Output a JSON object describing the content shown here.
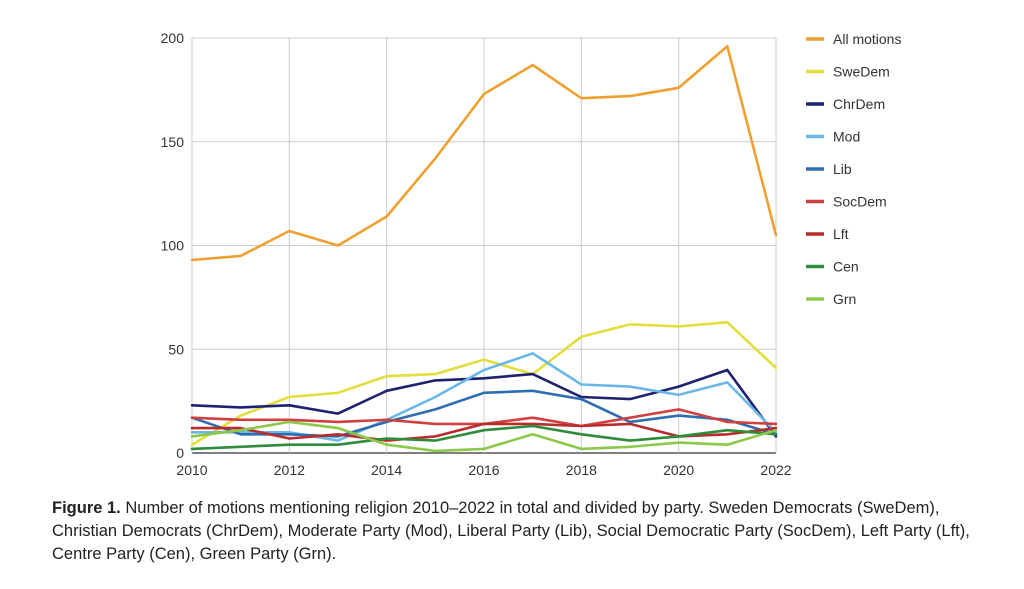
{
  "chart_data": {
    "type": "line",
    "x": [
      2010,
      2011,
      2012,
      2013,
      2014,
      2015,
      2016,
      2017,
      2018,
      2019,
      2020,
      2021,
      2022
    ],
    "xticks": [
      2010,
      2012,
      2014,
      2016,
      2018,
      2020,
      2022
    ],
    "yticks": [
      0,
      50,
      100,
      150,
      200
    ],
    "ylim": [
      0,
      200
    ],
    "xlim": [
      2010,
      2022
    ],
    "grid": true,
    "legend_position": "right",
    "series": [
      {
        "name": "All motions",
        "color": "#f0a030",
        "values": [
          93,
          95,
          107,
          100,
          114,
          142,
          173,
          187,
          171,
          172,
          176,
          196,
          105
        ]
      },
      {
        "name": "SweDem",
        "color": "#e4de3c",
        "values": [
          4,
          18,
          27,
          29,
          37,
          38,
          45,
          38,
          56,
          62,
          61,
          63,
          41
        ]
      },
      {
        "name": "ChrDem",
        "color": "#1c2270",
        "values": [
          23,
          22,
          23,
          19,
          30,
          35,
          36,
          38,
          27,
          26,
          32,
          40,
          8
        ]
      },
      {
        "name": "Mod",
        "color": "#6ab8e8",
        "values": [
          10,
          10,
          10,
          6,
          16,
          27,
          40,
          48,
          33,
          32,
          28,
          34,
          10
        ]
      },
      {
        "name": "Lib",
        "color": "#2e6db0",
        "values": [
          17,
          9,
          9,
          8,
          15,
          21,
          29,
          30,
          26,
          15,
          18,
          16,
          9
        ]
      },
      {
        "name": "SocDem",
        "color": "#d23f3f",
        "values": [
          17,
          16,
          16,
          15,
          16,
          14,
          14,
          17,
          13,
          17,
          21,
          15,
          14
        ]
      },
      {
        "name": "Lft",
        "color": "#b82c2c",
        "values": [
          12,
          12,
          7,
          9,
          6,
          8,
          14,
          14,
          13,
          14,
          8,
          9,
          12
        ]
      },
      {
        "name": "Cen",
        "color": "#2e8c3a",
        "values": [
          2,
          3,
          4,
          4,
          7,
          6,
          11,
          13,
          9,
          6,
          8,
          11,
          9
        ]
      },
      {
        "name": "Grn",
        "color": "#8cc84c",
        "values": [
          8,
          11,
          15,
          12,
          4,
          1,
          2,
          9,
          2,
          3,
          5,
          4,
          11
        ]
      }
    ]
  },
  "caption": {
    "label": "Figure 1.",
    "text": " Number of motions mentioning religion 2010–2022 in total and divided by party. Sweden Democrats (SweDem), Christian Democrats (ChrDem), Moderate Party (Mod), Liberal Party (Lib), Social Democratic Party (SocDem), Left Party (Lft), Centre Party (Cen), Green Party (Grn)."
  }
}
